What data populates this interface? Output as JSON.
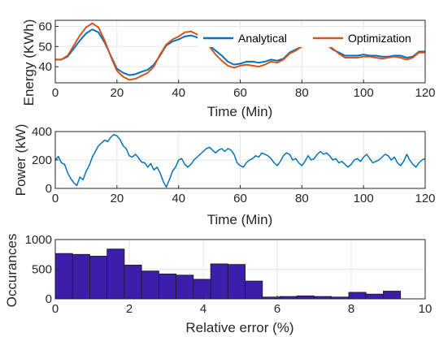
{
  "colors": {
    "analytical": "#0072BD",
    "optimization": "#D95319",
    "power": "#0072BD",
    "hist_fill": "#3B1FAA",
    "hist_edge": "#1a1a1a"
  },
  "chart_data": [
    {
      "type": "line",
      "xlabel": "Time (Min)",
      "ylabel": "Energy (KWh)",
      "xlim": [
        0,
        120
      ],
      "ylim": [
        32,
        63
      ],
      "xticks": [
        0,
        20,
        40,
        60,
        80,
        100,
        120
      ],
      "yticks": [
        40,
        50,
        60
      ],
      "grid": true,
      "legend_position": "top-right",
      "series": [
        {
          "name": "Analytical",
          "x": [
            0,
            2,
            4,
            6,
            8,
            10,
            12,
            14,
            16,
            18,
            20,
            22,
            24,
            26,
            28,
            30,
            32,
            34,
            36,
            38,
            40,
            42,
            44,
            46,
            48,
            50,
            52,
            54,
            56,
            58,
            60,
            62,
            64,
            66,
            68,
            70,
            72,
            74,
            76,
            78,
            80,
            82,
            84,
            86,
            88,
            90,
            92,
            94,
            96,
            98,
            100,
            102,
            104,
            106,
            108,
            110,
            112,
            114,
            116,
            118,
            120
          ],
          "y": [
            43.5,
            43.5,
            45,
            49,
            53,
            56.5,
            58.5,
            57,
            52,
            45.5,
            39,
            37,
            35.8,
            36.3,
            37.5,
            38.5,
            41,
            45.5,
            50.5,
            52.5,
            53.5,
            55,
            55.5,
            54.5,
            53,
            50.5,
            48,
            45.5,
            42.5,
            41,
            41.5,
            42.5,
            42.5,
            42,
            42.5,
            43.5,
            43,
            44,
            47,
            48.5,
            50,
            51,
            51.5,
            51.5,
            51,
            48.5,
            47,
            45.5,
            45.5,
            45.5,
            46,
            45.5,
            45.5,
            45,
            45,
            45.5,
            45.5,
            44.5,
            45,
            47.5,
            47.5
          ]
        },
        {
          "name": "Optimization",
          "x": [
            0,
            2,
            4,
            6,
            8,
            10,
            12,
            14,
            16,
            18,
            20,
            22,
            24,
            26,
            28,
            30,
            32,
            34,
            36,
            38,
            40,
            42,
            44,
            46,
            48,
            50,
            52,
            54,
            56,
            58,
            60,
            62,
            64,
            66,
            68,
            70,
            72,
            74,
            76,
            78,
            80,
            82,
            84,
            86,
            88,
            90,
            92,
            94,
            96,
            98,
            100,
            102,
            104,
            106,
            108,
            110,
            112,
            114,
            116,
            118,
            120
          ],
          "y": [
            43.5,
            43.5,
            45.5,
            50.5,
            55.5,
            59.5,
            61.5,
            59.5,
            53,
            45,
            38,
            35,
            33.5,
            34,
            35.5,
            37,
            40,
            46,
            51,
            53.5,
            55,
            57,
            57.5,
            56,
            53.5,
            50,
            46,
            43,
            40.5,
            39.5,
            40.5,
            41,
            40.5,
            40,
            41,
            42.5,
            42,
            43.5,
            46.5,
            48,
            50,
            51.5,
            52,
            52,
            51,
            49,
            46.5,
            44.5,
            44.5,
            44.5,
            45,
            45,
            44.5,
            44,
            44.5,
            45,
            44.5,
            43.5,
            44.5,
            47,
            47
          ]
        }
      ]
    },
    {
      "type": "line",
      "xlabel": "Time (Min)",
      "ylabel": "Power (kW)",
      "xlim": [
        0,
        120
      ],
      "ylim": [
        0,
        400
      ],
      "xticks": [
        0,
        20,
        40,
        60,
        80,
        100,
        120
      ],
      "yticks": [
        0,
        200,
        400
      ],
      "grid": true,
      "series": [
        {
          "x": [
            0,
            1,
            2,
            3,
            4,
            5,
            6,
            7,
            8,
            9,
            10,
            11,
            12,
            13,
            14,
            15,
            16,
            17,
            18,
            19,
            20,
            21,
            22,
            23,
            24,
            25,
            26,
            27,
            28,
            29,
            30,
            31,
            32,
            33,
            34,
            35,
            36,
            37,
            38,
            39,
            40,
            41,
            42,
            43,
            44,
            45,
            46,
            47,
            48,
            49,
            50,
            51,
            52,
            53,
            54,
            55,
            56,
            57,
            58,
            59,
            60,
            61,
            62,
            63,
            64,
            65,
            66,
            67,
            68,
            69,
            70,
            71,
            72,
            73,
            74,
            75,
            76,
            77,
            78,
            79,
            80,
            81,
            82,
            83,
            84,
            85,
            86,
            87,
            88,
            89,
            90,
            91,
            92,
            93,
            94,
            95,
            96,
            97,
            98,
            99,
            100,
            101,
            102,
            103,
            104,
            105,
            106,
            107,
            108,
            109,
            110,
            111,
            112,
            113,
            114,
            115,
            116,
            117,
            118,
            119,
            120
          ],
          "y": [
            200,
            225,
            180,
            170,
            110,
            70,
            40,
            20,
            80,
            60,
            120,
            160,
            220,
            260,
            300,
            320,
            340,
            330,
            360,
            380,
            370,
            345,
            300,
            280,
            230,
            220,
            240,
            215,
            185,
            180,
            150,
            175,
            130,
            150,
            110,
            50,
            10,
            60,
            120,
            150,
            200,
            210,
            170,
            150,
            170,
            200,
            220,
            240,
            260,
            280,
            290,
            270,
            250,
            270,
            280,
            260,
            280,
            270,
            240,
            180,
            160,
            150,
            180,
            200,
            210,
            230,
            220,
            250,
            240,
            230,
            210,
            180,
            160,
            190,
            230,
            250,
            240,
            200,
            210,
            180,
            160,
            190,
            230,
            200,
            210,
            240,
            260,
            240,
            250,
            230,
            200,
            210,
            180,
            190,
            170,
            150,
            170,
            200,
            210,
            190,
            220,
            240,
            210,
            180,
            190,
            200,
            220,
            240,
            230,
            200,
            220,
            180,
            160,
            190,
            240,
            200,
            170,
            150,
            180,
            200,
            210
          ]
        }
      ]
    },
    {
      "type": "bar",
      "xlabel": "Relative error (%)",
      "ylabel": "Occurances",
      "xlim": [
        0,
        10
      ],
      "ylim": [
        0,
        1000
      ],
      "xticks": [
        0,
        2,
        4,
        6,
        8,
        10
      ],
      "yticks": [
        0,
        500,
        1000
      ],
      "grid": true,
      "bin_edges": [
        0,
        0.4667,
        0.9333,
        1.4,
        1.8667,
        2.3333,
        2.8,
        3.2667,
        3.7333,
        4.2,
        4.6667,
        5.1333,
        5.6,
        6.0667,
        6.5333,
        7,
        7.4667,
        7.9333,
        8.4,
        8.8667,
        9.3333
      ],
      "values": [
        765,
        750,
        720,
        840,
        570,
        470,
        420,
        400,
        330,
        590,
        580,
        300,
        30,
        40,
        50,
        40,
        30,
        110,
        80,
        130
      ]
    }
  ]
}
